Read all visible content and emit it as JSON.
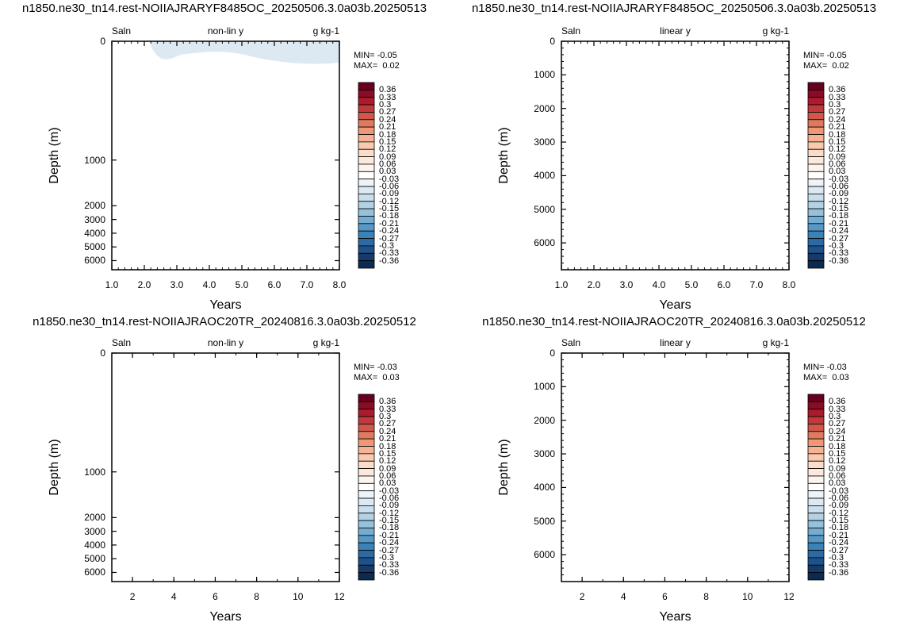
{
  "chart_data": [
    {
      "type": "heatmap",
      "title": "n1850.ne30_tn14.rest-NOIIAJRARYF8485OC_20250506.3.0a03b.20250513",
      "left_label": "Saln",
      "center_label": "non-lin y",
      "right_label": "g kg-1",
      "xlabel": "Years",
      "ylabel": "Depth (m)",
      "xlim": [
        1,
        8
      ],
      "xticks": [
        "1.0",
        "2.0",
        "3.0",
        "4.0",
        "5.0",
        "6.0",
        "7.0",
        "8.0"
      ],
      "yscale": "nonlinear",
      "ylim": [
        0,
        6500
      ],
      "yticks": [
        "0",
        "1000",
        "2000",
        "3000",
        "4000",
        "5000",
        "6000"
      ],
      "min_text": "MIN= -0.05",
      "max_text": "MAX=  0.02",
      "anomaly_region": {
        "description_value": -0.03,
        "years": [
          2.2,
          8.0
        ],
        "depth_max": 180
      }
    },
    {
      "type": "heatmap",
      "title": "n1850.ne30_tn14.rest-NOIIAJRARYF8485OC_20250506.3.0a03b.20250513",
      "left_label": "Saln",
      "center_label": "linear y",
      "right_label": "g kg-1",
      "xlabel": "Years",
      "ylabel": "Depth (m)",
      "xlim": [
        1,
        8
      ],
      "xticks": [
        "1.0",
        "2.0",
        "3.0",
        "4.0",
        "5.0",
        "6.0",
        "7.0",
        "8.0"
      ],
      "yscale": "linear",
      "ylim": [
        0,
        6800
      ],
      "yticks": [
        "0",
        "1000",
        "2000",
        "3000",
        "4000",
        "5000",
        "6000"
      ],
      "min_text": "MIN= -0.05",
      "max_text": "MAX=  0.02"
    },
    {
      "type": "heatmap",
      "title": "n1850.ne30_tn14.rest-NOIIAJRAOC20TR_20240816.3.0a03b.20250512",
      "left_label": "Saln",
      "center_label": "non-lin y",
      "right_label": "g kg-1",
      "xlabel": "Years",
      "ylabel": "Depth (m)",
      "xlim": [
        1,
        12
      ],
      "xticks": [
        "2",
        "4",
        "6",
        "8",
        "10",
        "12"
      ],
      "yscale": "nonlinear",
      "ylim": [
        0,
        6500
      ],
      "yticks": [
        "0",
        "1000",
        "2000",
        "3000",
        "4000",
        "5000",
        "6000"
      ],
      "min_text": "MIN= -0.03",
      "max_text": "MAX=  0.03"
    },
    {
      "type": "heatmap",
      "title": "n1850.ne30_tn14.rest-NOIIAJRAOC20TR_20240816.3.0a03b.20250512",
      "left_label": "Saln",
      "center_label": "linear y",
      "right_label": "g kg-1",
      "xlabel": "Years",
      "ylabel": "Depth (m)",
      "xlim": [
        1,
        12
      ],
      "xticks": [
        "2",
        "4",
        "6",
        "8",
        "10",
        "12"
      ],
      "yscale": "linear",
      "ylim": [
        0,
        6800
      ],
      "yticks": [
        "0",
        "1000",
        "2000",
        "3000",
        "4000",
        "5000",
        "6000"
      ],
      "min_text": "MIN= -0.03",
      "max_text": "MAX=  0.03"
    }
  ],
  "colorbar": {
    "labels": [
      "0.36",
      "0.33",
      "0.3",
      "0.27",
      "0.24",
      "0.21",
      "0.18",
      "0.15",
      "0.12",
      "0.09",
      "0.06",
      "0.03",
      "-0.03",
      "-0.06",
      "-0.09",
      "-0.12",
      "-0.15",
      "-0.18",
      "-0.21",
      "-0.24",
      "-0.27",
      "-0.3",
      "-0.33",
      "-0.36"
    ],
    "colors": [
      "#67001f",
      "#8a0b25",
      "#ac1a2d",
      "#c0393b",
      "#d0574a",
      "#e07a5f",
      "#ee9877",
      "#f5b394",
      "#f9cab0",
      "#fbdcc9",
      "#fbe9de",
      "#fcf4ee",
      "#ffffff",
      "#edf3f8",
      "#dde9f2",
      "#cadeec",
      "#b2d1e5",
      "#94c2dd",
      "#74add1",
      "#5698c6",
      "#3b82ba",
      "#2b6aa5",
      "#1f528a",
      "#163b6b",
      "#0d2a50"
    ]
  }
}
